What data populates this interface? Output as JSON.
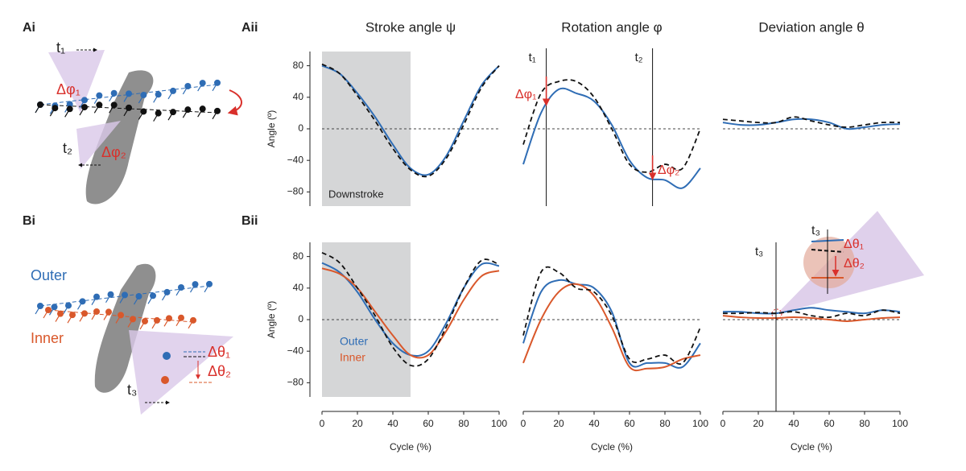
{
  "panel_labels": [
    "Ai",
    "Aii",
    "Bi",
    "Bii"
  ],
  "illustrations": {
    "A": [
      "t₁",
      "Δφ₁",
      "t₂",
      "Δφ₂"
    ],
    "B": [
      "Outer",
      "Inner",
      "Δθ₁",
      "Δθ₂",
      "t₃"
    ]
  },
  "chart_data": [
    {
      "type": "line",
      "title": "Stroke angle ψ",
      "ylabel": "Angle (º)",
      "xlim": [
        0,
        100
      ],
      "ylim": [
        -98,
        98
      ],
      "yticks": [
        {
          "value": -80,
          "label": "−80"
        },
        {
          "value": -40,
          "label": "−40"
        },
        0,
        40,
        80
      ],
      "zero_line": true,
      "shade": {
        "from": 0,
        "to": 50,
        "label": "Downstroke"
      },
      "x": [
        0,
        10,
        20,
        30,
        40,
        50,
        60,
        70,
        80,
        90,
        100
      ],
      "series": [
        {
          "color": "#2f6db5",
          "values": [
            80,
            70,
            45,
            15,
            -20,
            -50,
            -58,
            -35,
            10,
            55,
            80
          ]
        },
        {
          "color": "#111111",
          "dash": true,
          "values": [
            82,
            70,
            42,
            10,
            -25,
            -52,
            -60,
            -38,
            5,
            52,
            80
          ]
        }
      ]
    },
    {
      "type": "line",
      "title": "Rotation angle φ",
      "xlim": [
        0,
        100
      ],
      "ylim": [
        -98,
        98
      ],
      "zero_line": true,
      "vlines": [
        {
          "x": 13,
          "label": "t₁"
        },
        {
          "x": 73,
          "label": "t₂"
        }
      ],
      "annotations": [
        "Δφ₁",
        "Δφ₂"
      ],
      "x": [
        0,
        10,
        20,
        30,
        40,
        50,
        60,
        70,
        80,
        90,
        100
      ],
      "series": [
        {
          "color": "#2f6db5",
          "values": [
            -45,
            20,
            50,
            45,
            35,
            5,
            -40,
            -62,
            -65,
            -75,
            -50
          ]
        },
        {
          "color": "#111111",
          "dash": true,
          "values": [
            -20,
            45,
            60,
            60,
            40,
            0,
            -45,
            -55,
            -45,
            -50,
            0
          ]
        }
      ]
    },
    {
      "type": "line",
      "title": "Deviation angle θ",
      "xlim": [
        0,
        100
      ],
      "ylim": [
        -98,
        98
      ],
      "zero_line": true,
      "x": [
        0,
        10,
        20,
        30,
        40,
        50,
        60,
        70,
        80,
        90,
        100
      ],
      "series": [
        {
          "color": "#2f6db5",
          "values": [
            8,
            5,
            5,
            8,
            12,
            12,
            8,
            0,
            2,
            5,
            6
          ]
        },
        {
          "color": "#111111",
          "dash": true,
          "values": [
            12,
            10,
            8,
            8,
            15,
            10,
            5,
            2,
            5,
            8,
            8
          ]
        }
      ]
    },
    {
      "type": "line",
      "ylabel": "Angle (º)",
      "xlabel": "Cycle (%)",
      "xlim": [
        0,
        100
      ],
      "ylim": [
        -98,
        98
      ],
      "xticks": [
        0,
        20,
        40,
        60,
        80,
        100
      ],
      "yticks": [
        {
          "value": -80,
          "label": "−80"
        },
        {
          "value": -40,
          "label": "−40"
        },
        0,
        40,
        80
      ],
      "zero_line": true,
      "shade": {
        "from": 0,
        "to": 50
      },
      "legend": "lower left",
      "x": [
        0,
        10,
        20,
        30,
        40,
        50,
        60,
        70,
        80,
        90,
        100
      ],
      "series": [
        {
          "name": "Outer",
          "color": "#2f6db5",
          "values": [
            72,
            60,
            35,
            0,
            -30,
            -45,
            -40,
            -5,
            40,
            70,
            68
          ]
        },
        {
          "name": "Inner",
          "color": "#d9582b",
          "values": [
            65,
            58,
            40,
            10,
            -20,
            -45,
            -45,
            -15,
            25,
            55,
            62
          ]
        },
        {
          "color": "#111111",
          "dash": true,
          "values": [
            85,
            72,
            40,
            5,
            -35,
            -58,
            -50,
            -10,
            40,
            75,
            70
          ]
        }
      ]
    },
    {
      "type": "line",
      "xlabel": "Cycle (%)",
      "xlim": [
        0,
        100
      ],
      "ylim": [
        -98,
        98
      ],
      "xticks": [
        0,
        20,
        40,
        60,
        80,
        100
      ],
      "zero_line": true,
      "x": [
        0,
        10,
        20,
        30,
        40,
        50,
        60,
        70,
        80,
        90,
        100
      ],
      "series": [
        {
          "color": "#2f6db5",
          "values": [
            -30,
            35,
            50,
            45,
            40,
            10,
            -55,
            -55,
            -55,
            -60,
            -30
          ]
        },
        {
          "color": "#d9582b",
          "values": [
            -55,
            0,
            35,
            45,
            30,
            -10,
            -60,
            -62,
            -60,
            -50,
            -45
          ]
        },
        {
          "color": "#111111",
          "dash": true,
          "values": [
            -20,
            60,
            60,
            40,
            35,
            5,
            -50,
            -50,
            -45,
            -55,
            -10
          ]
        }
      ]
    },
    {
      "type": "line",
      "xlabel": "Cycle (%)",
      "xlim": [
        0,
        100
      ],
      "ylim": [
        -98,
        98
      ],
      "xticks": [
        0,
        20,
        40,
        60,
        80,
        100
      ],
      "zero_line": true,
      "vlines": [
        {
          "x": 30,
          "label": "t₃"
        }
      ],
      "annotations": [
        "t₃",
        "Δθ₁",
        "Δθ₂"
      ],
      "x": [
        0,
        10,
        20,
        30,
        40,
        50,
        60,
        70,
        80,
        90,
        100
      ],
      "series": [
        {
          "color": "#2f6db5",
          "values": [
            10,
            10,
            8,
            8,
            12,
            15,
            12,
            10,
            8,
            12,
            10
          ]
        },
        {
          "color": "#d9582b",
          "values": [
            5,
            3,
            2,
            2,
            3,
            2,
            0,
            -2,
            0,
            2,
            3
          ]
        },
        {
          "color": "#111111",
          "dash": true,
          "values": [
            8,
            8,
            9,
            8,
            10,
            5,
            3,
            8,
            5,
            12,
            8
          ]
        }
      ]
    }
  ]
}
